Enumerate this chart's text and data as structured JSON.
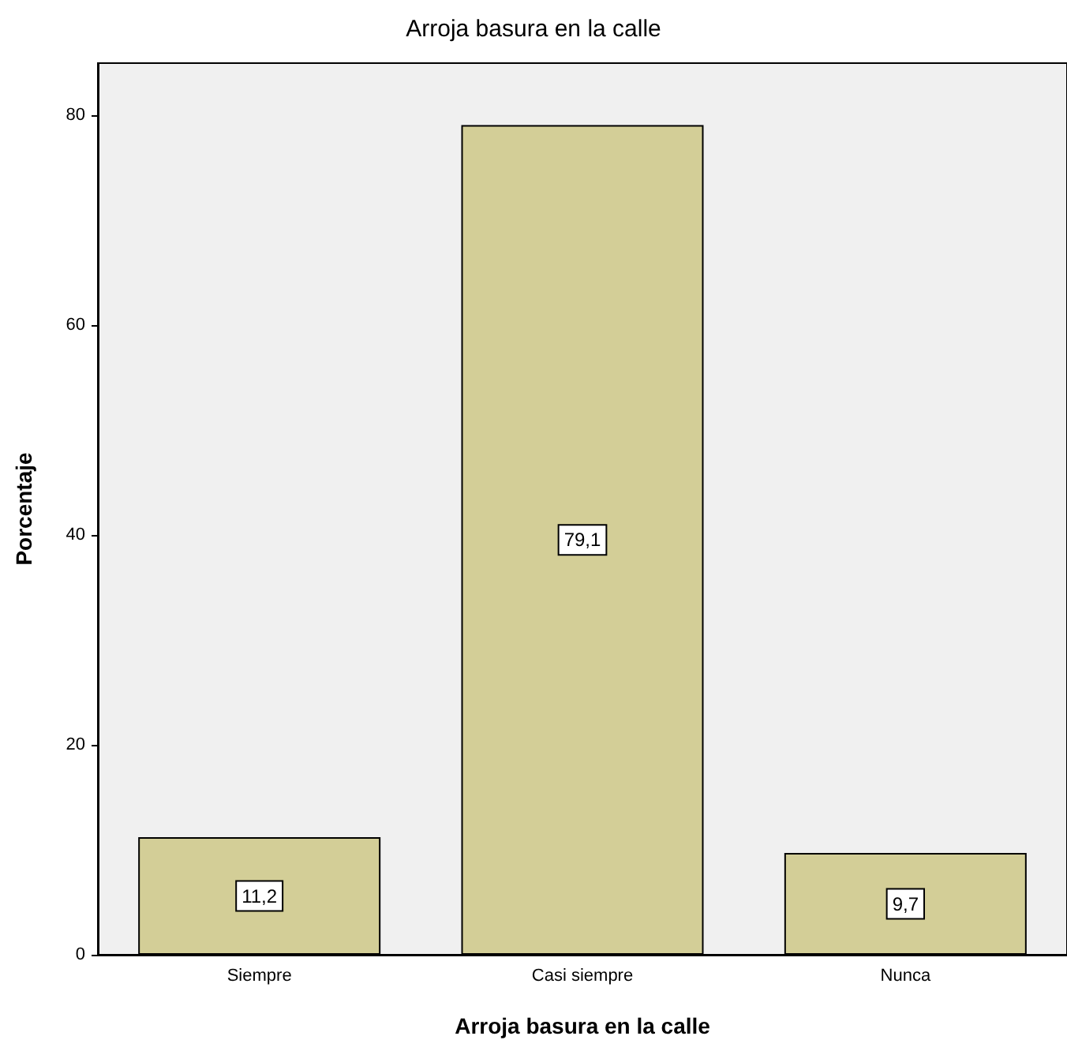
{
  "chart_data": {
    "type": "bar",
    "title": "Arroja basura en la calle",
    "xlabel": "Arroja basura en la calle",
    "ylabel": "Porcentaje",
    "categories": [
      "Siempre",
      "Casi siempre",
      "Nunca"
    ],
    "values": [
      11.2,
      79.1,
      9.7
    ],
    "value_labels": [
      "11,2",
      "79,1",
      "9,7"
    ],
    "color": "#d3ce97",
    "ylim": [
      0,
      85
    ],
    "yticks": [
      0,
      20,
      40,
      60,
      80
    ],
    "grid": false
  }
}
